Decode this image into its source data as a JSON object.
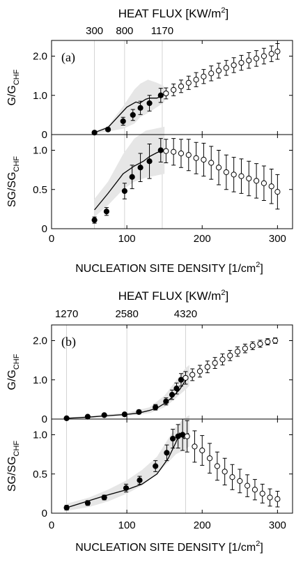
{
  "chart_data": [
    {
      "panel_label": "(a)",
      "type": "scatter",
      "top_axis_title": "HEAT FLUX [KW/m",
      "top_axis_title_sup": "2",
      "top_axis_title_end": "]",
      "top_ticks": [
        {
          "label": "300",
          "x": 57
        },
        {
          "label": "800",
          "x": 97
        },
        {
          "label": "1170",
          "x": 147
        }
      ],
      "xlabel": "NUCLEATION SITE DENSITY [1/cm",
      "xlabel_sup": "2",
      "xlabel_end": "]",
      "xlim": [
        0,
        320
      ],
      "xticks": [
        0,
        100,
        200,
        300
      ],
      "subplots": [
        {
          "ylabel": "G/G",
          "ylabel_sub": "CHF",
          "ylim": [
            0,
            2.4
          ],
          "yticks": [
            {
              "v": 0,
              "label": "0"
            },
            {
              "v": 1.0,
              "label": "1.0"
            },
            {
              "v": 2.0,
              "label": "2.0"
            }
          ],
          "band": [
            [
              57,
              0.02,
              0.08
            ],
            [
              75,
              0.08,
              0.22
            ],
            [
              95,
              0.15,
              0.72
            ],
            [
              110,
              0.28,
              1.15
            ],
            [
              118,
              0.45,
              1.3
            ],
            [
              128,
              0.55,
              1.4
            ],
            [
              140,
              0.7,
              1.32
            ],
            [
              148,
              0.8,
              1.25
            ],
            [
              150,
              0.85,
              1.2
            ]
          ],
          "model": [
            [
              57,
              0.05
            ],
            [
              75,
              0.18
            ],
            [
              100,
              0.7
            ],
            [
              112,
              0.83
            ],
            [
              117,
              0.8
            ],
            [
              125,
              0.9
            ],
            [
              130,
              0.93
            ],
            [
              140,
              0.93
            ],
            [
              148,
              1.0
            ]
          ],
          "filled": [
            {
              "x": 57,
              "y": 0.05,
              "err": 0.03
            },
            {
              "x": 75,
              "y": 0.13,
              "err": 0.04
            },
            {
              "x": 95,
              "y": 0.34,
              "err": 0.1
            },
            {
              "x": 108,
              "y": 0.5,
              "err": 0.14
            },
            {
              "x": 118,
              "y": 0.68,
              "err": 0.17
            },
            {
              "x": 130,
              "y": 0.8,
              "err": 0.2
            },
            {
              "x": 145,
              "y": 1.0,
              "err": 0.18
            }
          ],
          "open": [
            {
              "x": 152,
              "y": 1.05,
              "err": 0.14
            },
            {
              "x": 162,
              "y": 1.14,
              "err": 0.15
            },
            {
              "x": 172,
              "y": 1.23,
              "err": 0.16
            },
            {
              "x": 182,
              "y": 1.32,
              "err": 0.17
            },
            {
              "x": 192,
              "y": 1.4,
              "err": 0.18
            },
            {
              "x": 202,
              "y": 1.48,
              "err": 0.18
            },
            {
              "x": 212,
              "y": 1.56,
              "err": 0.19
            },
            {
              "x": 222,
              "y": 1.63,
              "err": 0.19
            },
            {
              "x": 232,
              "y": 1.7,
              "err": 0.19
            },
            {
              "x": 242,
              "y": 1.77,
              "err": 0.19
            },
            {
              "x": 252,
              "y": 1.83,
              "err": 0.19
            },
            {
              "x": 262,
              "y": 1.89,
              "err": 0.2
            },
            {
              "x": 272,
              "y": 1.94,
              "err": 0.2
            },
            {
              "x": 282,
              "y": 2.0,
              "err": 0.2
            },
            {
              "x": 292,
              "y": 2.06,
              "err": 0.2
            },
            {
              "x": 300,
              "y": 2.12,
              "err": 0.2
            }
          ]
        },
        {
          "ylabel": "SG/SG",
          "ylabel_sub": "CHF",
          "ylim": [
            0,
            1.2
          ],
          "yticks": [
            {
              "v": 0,
              "label": "0"
            },
            {
              "v": 0.5,
              "label": "0.5"
            },
            {
              "v": 1.0,
              "label": "1.0"
            }
          ],
          "band": [
            [
              57,
              0.15,
              0.38
            ],
            [
              75,
              0.3,
              0.6
            ],
            [
              95,
              0.5,
              0.95
            ],
            [
              110,
              0.6,
              1.15
            ],
            [
              125,
              0.65,
              1.25
            ],
            [
              140,
              0.68,
              1.28
            ],
            [
              150,
              0.7,
              1.3
            ]
          ],
          "model": [
            [
              57,
              0.24
            ],
            [
              75,
              0.45
            ],
            [
              95,
              0.7
            ],
            [
              110,
              0.8
            ],
            [
              122,
              0.86
            ],
            [
              130,
              0.92
            ],
            [
              140,
              0.97
            ],
            [
              148,
              1.0
            ]
          ],
          "filled": [
            {
              "x": 57,
              "y": 0.11,
              "err": 0.04
            },
            {
              "x": 73,
              "y": 0.22,
              "err": 0.05
            },
            {
              "x": 97,
              "y": 0.48,
              "err": 0.1
            },
            {
              "x": 107,
              "y": 0.66,
              "err": 0.15
            },
            {
              "x": 118,
              "y": 0.78,
              "err": 0.18
            },
            {
              "x": 130,
              "y": 0.86,
              "err": 0.22
            },
            {
              "x": 145,
              "y": 1.0,
              "err": 0.15
            }
          ],
          "open": [
            {
              "x": 152,
              "y": 0.99,
              "err": 0.15
            },
            {
              "x": 162,
              "y": 0.98,
              "err": 0.17
            },
            {
              "x": 172,
              "y": 0.96,
              "err": 0.18
            },
            {
              "x": 182,
              "y": 0.94,
              "err": 0.2
            },
            {
              "x": 192,
              "y": 0.9,
              "err": 0.2
            },
            {
              "x": 202,
              "y": 0.88,
              "err": 0.21
            },
            {
              "x": 212,
              "y": 0.84,
              "err": 0.21
            },
            {
              "x": 222,
              "y": 0.78,
              "err": 0.22
            },
            {
              "x": 232,
              "y": 0.72,
              "err": 0.22
            },
            {
              "x": 242,
              "y": 0.69,
              "err": 0.22
            },
            {
              "x": 252,
              "y": 0.67,
              "err": 0.22
            },
            {
              "x": 262,
              "y": 0.64,
              "err": 0.22
            },
            {
              "x": 272,
              "y": 0.61,
              "err": 0.22
            },
            {
              "x": 282,
              "y": 0.58,
              "err": 0.22
            },
            {
              "x": 292,
              "y": 0.54,
              "err": 0.22
            },
            {
              "x": 300,
              "y": 0.47,
              "err": 0.22
            }
          ]
        }
      ]
    },
    {
      "panel_label": "(b)",
      "type": "scatter",
      "top_axis_title": "HEAT FLUX [KW/m",
      "top_axis_title_sup": "2",
      "top_axis_title_end": "]",
      "top_ticks": [
        {
          "label": "1270",
          "x": 20
        },
        {
          "label": "2580",
          "x": 100
        },
        {
          "label": "4320",
          "x": 178
        }
      ],
      "xlabel": "NUCLEATION SITE DENSITY [1/cm",
      "xlabel_sup": "2",
      "xlabel_end": "]",
      "xlim": [
        0,
        320
      ],
      "xticks": [
        0,
        100,
        200,
        300
      ],
      "subplots": [
        {
          "ylabel": "G/G",
          "ylabel_sub": "CHF",
          "ylim": [
            0,
            2.4
          ],
          "yticks": [
            {
              "v": 0,
              "label": "0"
            },
            {
              "v": 1.0,
              "label": "1.0"
            },
            {
              "v": 2.0,
              "label": "2.0"
            }
          ],
          "band": [
            [
              20,
              0.0,
              0.03
            ],
            [
              50,
              0.03,
              0.08
            ],
            [
              100,
              0.08,
              0.16
            ],
            [
              130,
              0.15,
              0.3
            ],
            [
              150,
              0.3,
              0.6
            ],
            [
              160,
              0.45,
              0.85
            ],
            [
              170,
              0.62,
              1.1
            ],
            [
              178,
              0.75,
              1.3
            ],
            [
              183,
              0.85,
              1.38
            ]
          ],
          "model": [
            [
              20,
              0.02
            ],
            [
              50,
              0.05
            ],
            [
              70,
              0.08
            ],
            [
              100,
              0.12
            ],
            [
              115,
              0.15
            ],
            [
              130,
              0.22
            ],
            [
              140,
              0.28
            ],
            [
              150,
              0.4
            ],
            [
              160,
              0.55
            ],
            [
              170,
              0.75
            ],
            [
              180,
              1.05
            ]
          ],
          "filled": [
            {
              "x": 20,
              "y": 0.02,
              "err": 0.02
            },
            {
              "x": 48,
              "y": 0.06,
              "err": 0.03
            },
            {
              "x": 70,
              "y": 0.1,
              "err": 0.03
            },
            {
              "x": 97,
              "y": 0.12,
              "err": 0.04
            },
            {
              "x": 116,
              "y": 0.18,
              "err": 0.05
            },
            {
              "x": 138,
              "y": 0.3,
              "err": 0.07
            },
            {
              "x": 152,
              "y": 0.45,
              "err": 0.09
            },
            {
              "x": 160,
              "y": 0.62,
              "err": 0.12
            },
            {
              "x": 166,
              "y": 0.78,
              "err": 0.14
            },
            {
              "x": 172,
              "y": 1.0,
              "err": 0.16
            }
          ],
          "open": [
            {
              "x": 178,
              "y": 1.05,
              "err": 0.16
            },
            {
              "x": 187,
              "y": 1.13,
              "err": 0.15
            },
            {
              "x": 197,
              "y": 1.22,
              "err": 0.15
            },
            {
              "x": 207,
              "y": 1.33,
              "err": 0.15
            },
            {
              "x": 217,
              "y": 1.43,
              "err": 0.14
            },
            {
              "x": 227,
              "y": 1.52,
              "err": 0.14
            },
            {
              "x": 237,
              "y": 1.62,
              "err": 0.13
            },
            {
              "x": 247,
              "y": 1.72,
              "err": 0.12
            },
            {
              "x": 257,
              "y": 1.8,
              "err": 0.11
            },
            {
              "x": 267,
              "y": 1.87,
              "err": 0.1
            },
            {
              "x": 277,
              "y": 1.92,
              "err": 0.09
            },
            {
              "x": 287,
              "y": 1.97,
              "err": 0.08
            },
            {
              "x": 297,
              "y": 2.0,
              "err": 0.07
            }
          ]
        },
        {
          "ylabel": "SG/SG",
          "ylabel_sub": "CHF",
          "ylim": [
            0,
            1.2
          ],
          "yticks": [
            {
              "v": 0,
              "label": "0"
            },
            {
              "v": 0.5,
              "label": "0.5"
            },
            {
              "v": 1.0,
              "label": "1.0"
            }
          ],
          "band": [
            [
              20,
              0.03,
              0.12
            ],
            [
              50,
              0.08,
              0.2
            ],
            [
              75,
              0.15,
              0.3
            ],
            [
              100,
              0.25,
              0.42
            ],
            [
              120,
              0.35,
              0.55
            ],
            [
              140,
              0.5,
              0.72
            ],
            [
              155,
              0.65,
              0.95
            ],
            [
              165,
              0.75,
              1.1
            ],
            [
              175,
              0.8,
              1.2
            ],
            [
              183,
              0.85,
              1.25
            ]
          ],
          "model": [
            [
              20,
              0.07
            ],
            [
              50,
              0.16
            ],
            [
              70,
              0.22
            ],
            [
              100,
              0.3
            ],
            [
              120,
              0.37
            ],
            [
              140,
              0.5
            ],
            [
              155,
              0.7
            ],
            [
              165,
              0.9
            ],
            [
              170,
              1.02
            ],
            [
              176,
              0.95
            ],
            [
              182,
              1.02
            ]
          ],
          "filled": [
            {
              "x": 20,
              "y": 0.07,
              "err": 0.03
            },
            {
              "x": 48,
              "y": 0.13,
              "err": 0.03
            },
            {
              "x": 70,
              "y": 0.2,
              "err": 0.03
            },
            {
              "x": 99,
              "y": 0.32,
              "err": 0.05
            },
            {
              "x": 117,
              "y": 0.42,
              "err": 0.05
            },
            {
              "x": 138,
              "y": 0.6,
              "err": 0.07
            },
            {
              "x": 153,
              "y": 0.77,
              "err": 0.1
            },
            {
              "x": 161,
              "y": 0.95,
              "err": 0.12
            },
            {
              "x": 168,
              "y": 0.98,
              "err": 0.15
            },
            {
              "x": 174,
              "y": 1.0,
              "err": 0.2
            }
          ],
          "open": [
            {
              "x": 180,
              "y": 0.98,
              "err": 0.2
            },
            {
              "x": 190,
              "y": 0.85,
              "err": 0.2
            },
            {
              "x": 200,
              "y": 0.8,
              "err": 0.19
            },
            {
              "x": 210,
              "y": 0.7,
              "err": 0.19
            },
            {
              "x": 220,
              "y": 0.6,
              "err": 0.18
            },
            {
              "x": 230,
              "y": 0.53,
              "err": 0.17
            },
            {
              "x": 240,
              "y": 0.46,
              "err": 0.16
            },
            {
              "x": 250,
              "y": 0.41,
              "err": 0.15
            },
            {
              "x": 260,
              "y": 0.35,
              "err": 0.14
            },
            {
              "x": 270,
              "y": 0.3,
              "err": 0.13
            },
            {
              "x": 280,
              "y": 0.25,
              "err": 0.12
            },
            {
              "x": 290,
              "y": 0.2,
              "err": 0.11
            },
            {
              "x": 300,
              "y": 0.18,
              "err": 0.1
            }
          ]
        }
      ]
    }
  ]
}
